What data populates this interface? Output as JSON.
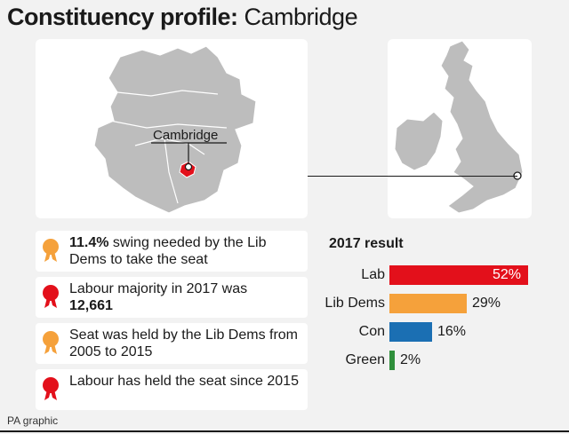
{
  "title": {
    "bold": "Constituency profile:",
    "light": "Cambridge"
  },
  "county_map": {
    "label": "Cambridge",
    "marker_color": "#e3101b"
  },
  "uk_map": {
    "marker": "Cambridge location dot"
  },
  "facts": [
    {
      "bold": "11.4%",
      "text": " swing needed by the Lib Dems to take the seat",
      "icon": "rosette-orange",
      "color": "#f5a13b"
    },
    {
      "text": "Labour majority in 2017 was ",
      "bold_after": "12,661",
      "icon": "rosette-red",
      "color": "#e3101b"
    },
    {
      "text": "Seat was held by the Lib Dems from 2005 to 2015",
      "icon": "rosette-orange",
      "color": "#f5a13b"
    },
    {
      "text": "Labour has held the seat since 2015",
      "icon": "rosette-red",
      "color": "#e3101b"
    }
  ],
  "chart_data": {
    "type": "bar",
    "title": "2017 result",
    "categories": [
      "Lab",
      "Lib Dems",
      "Con",
      "Green"
    ],
    "values": [
      52,
      29,
      16,
      2
    ],
    "value_labels": [
      "52%",
      "29%",
      "16%",
      "2%"
    ],
    "colors": [
      "#e3101b",
      "#f5a13b",
      "#1b6fb3",
      "#2f8f3b"
    ]
  },
  "footer": "PA graphic"
}
